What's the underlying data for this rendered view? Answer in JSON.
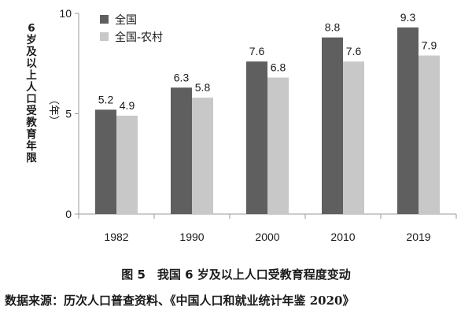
{
  "chart_data": {
    "type": "bar",
    "categories": [
      "1982",
      "1990",
      "2000",
      "2010",
      "2019"
    ],
    "series": [
      {
        "name": "全国",
        "values": [
          5.2,
          6.3,
          7.6,
          8.8,
          9.3
        ],
        "color": "#5f5f5f"
      },
      {
        "name": "全国-农村",
        "values": [
          4.9,
          5.8,
          6.8,
          7.6,
          7.9
        ],
        "color": "#c8c8c8"
      }
    ],
    "data_labels": [
      [
        "5.2",
        "6.3",
        "7.6",
        "8.8",
        "9.3"
      ],
      [
        "4.9",
        "5.8",
        "6.8",
        "7.6",
        "7.9"
      ]
    ],
    "ylabel": "6岁及以上人口受教育年限",
    "ylabel_unit": "（年）",
    "ylim": [
      0,
      10
    ],
    "yticks": [
      "0",
      "5",
      "10"
    ],
    "grid": false,
    "legend_position": "top-left"
  },
  "caption": "图 5　我国 6 岁及以上人口受教育程度变动",
  "source": "数据来源：历次人口普查资料、《中国人口和就业统计年鉴 2020》"
}
